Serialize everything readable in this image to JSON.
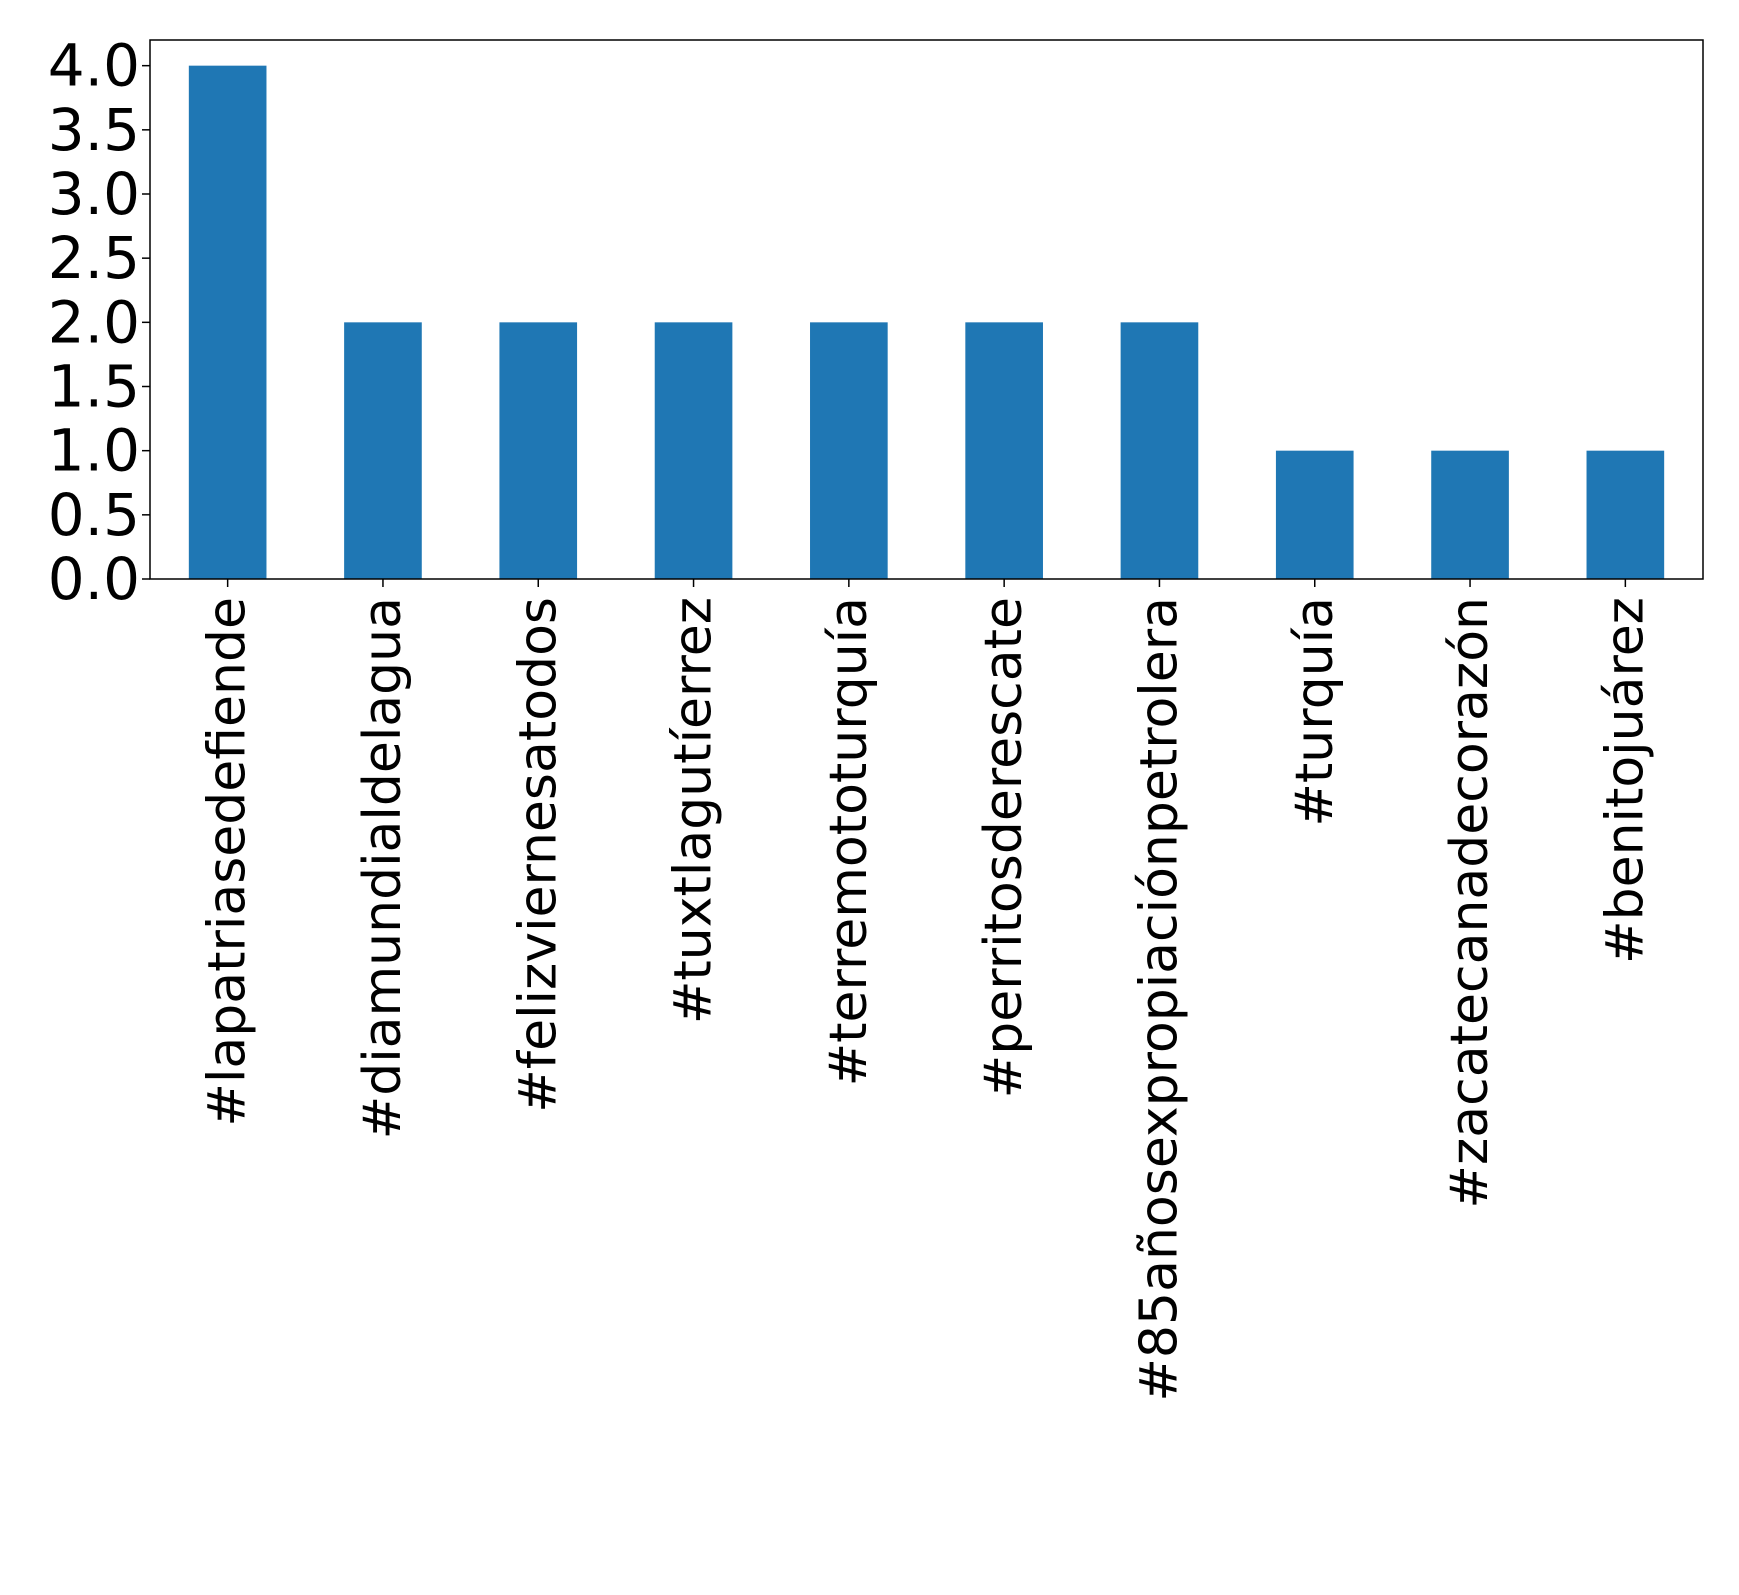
{
  "chart_data": {
    "type": "bar",
    "title": "",
    "xlabel": "",
    "ylabel": "",
    "categories": [
      "#lapatriasedefiende",
      "#diamundialdelagua",
      "#felizviernesatodos",
      "#tuxtlagutíerrez",
      "#terremototurquía",
      "#perritosderescate",
      "#85añosexpropiaciónpetrolera",
      "#turquía",
      "#zacatecanadecorazón",
      "#benitojuárez"
    ],
    "values": [
      4,
      2,
      2,
      2,
      2,
      2,
      2,
      1,
      1,
      1
    ],
    "ylim": [
      0,
      4.2
    ],
    "yticks": [
      "0.0",
      "0.5",
      "1.0",
      "1.5",
      "2.0",
      "2.5",
      "3.0",
      "3.5",
      "4.0"
    ],
    "grid": false,
    "legend": "none",
    "bar_color": "#1f77b4"
  }
}
